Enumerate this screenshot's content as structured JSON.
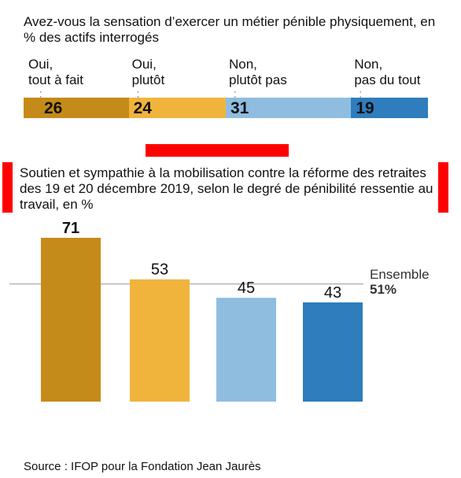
{
  "chart_data": [
    {
      "type": "bar",
      "stacked": true,
      "orientation": "horizontal",
      "title": "Avez-vous la sensation d’exercer un métier pénible physiquement, en % des actifs interrogés",
      "categories": [
        "Oui,\ntout à fait",
        "Oui,\nplutôt",
        "Non,\nplutôt pas",
        "Non,\npas du tout"
      ],
      "values": [
        26,
        24,
        31,
        19
      ],
      "colors": [
        "#c58b1a",
        "#f0b43d",
        "#8fbde0",
        "#2f7dbd"
      ]
    },
    {
      "type": "bar",
      "title": "Soutien et sympathie à la mobilisation contre la réforme des retraites des 19 et 20 décembre 2019, selon le degré de pénibilité ressentie au travail, en %",
      "categories": [
        "Oui, tout à fait",
        "Oui, plutôt",
        "Non, plutôt pas",
        "Non, pas du tout"
      ],
      "values": [
        71,
        53,
        45,
        43
      ],
      "colors": [
        "#c58b1a",
        "#f0b43d",
        "#8fbde0",
        "#2f7dbd"
      ],
      "ylim": [
        0,
        71
      ],
      "reference_line": {
        "label": "Ensemble",
        "value": 51,
        "value_label": "51%"
      }
    }
  ],
  "source": "Source : IFOP pour la Fondation Jean Jaurès"
}
